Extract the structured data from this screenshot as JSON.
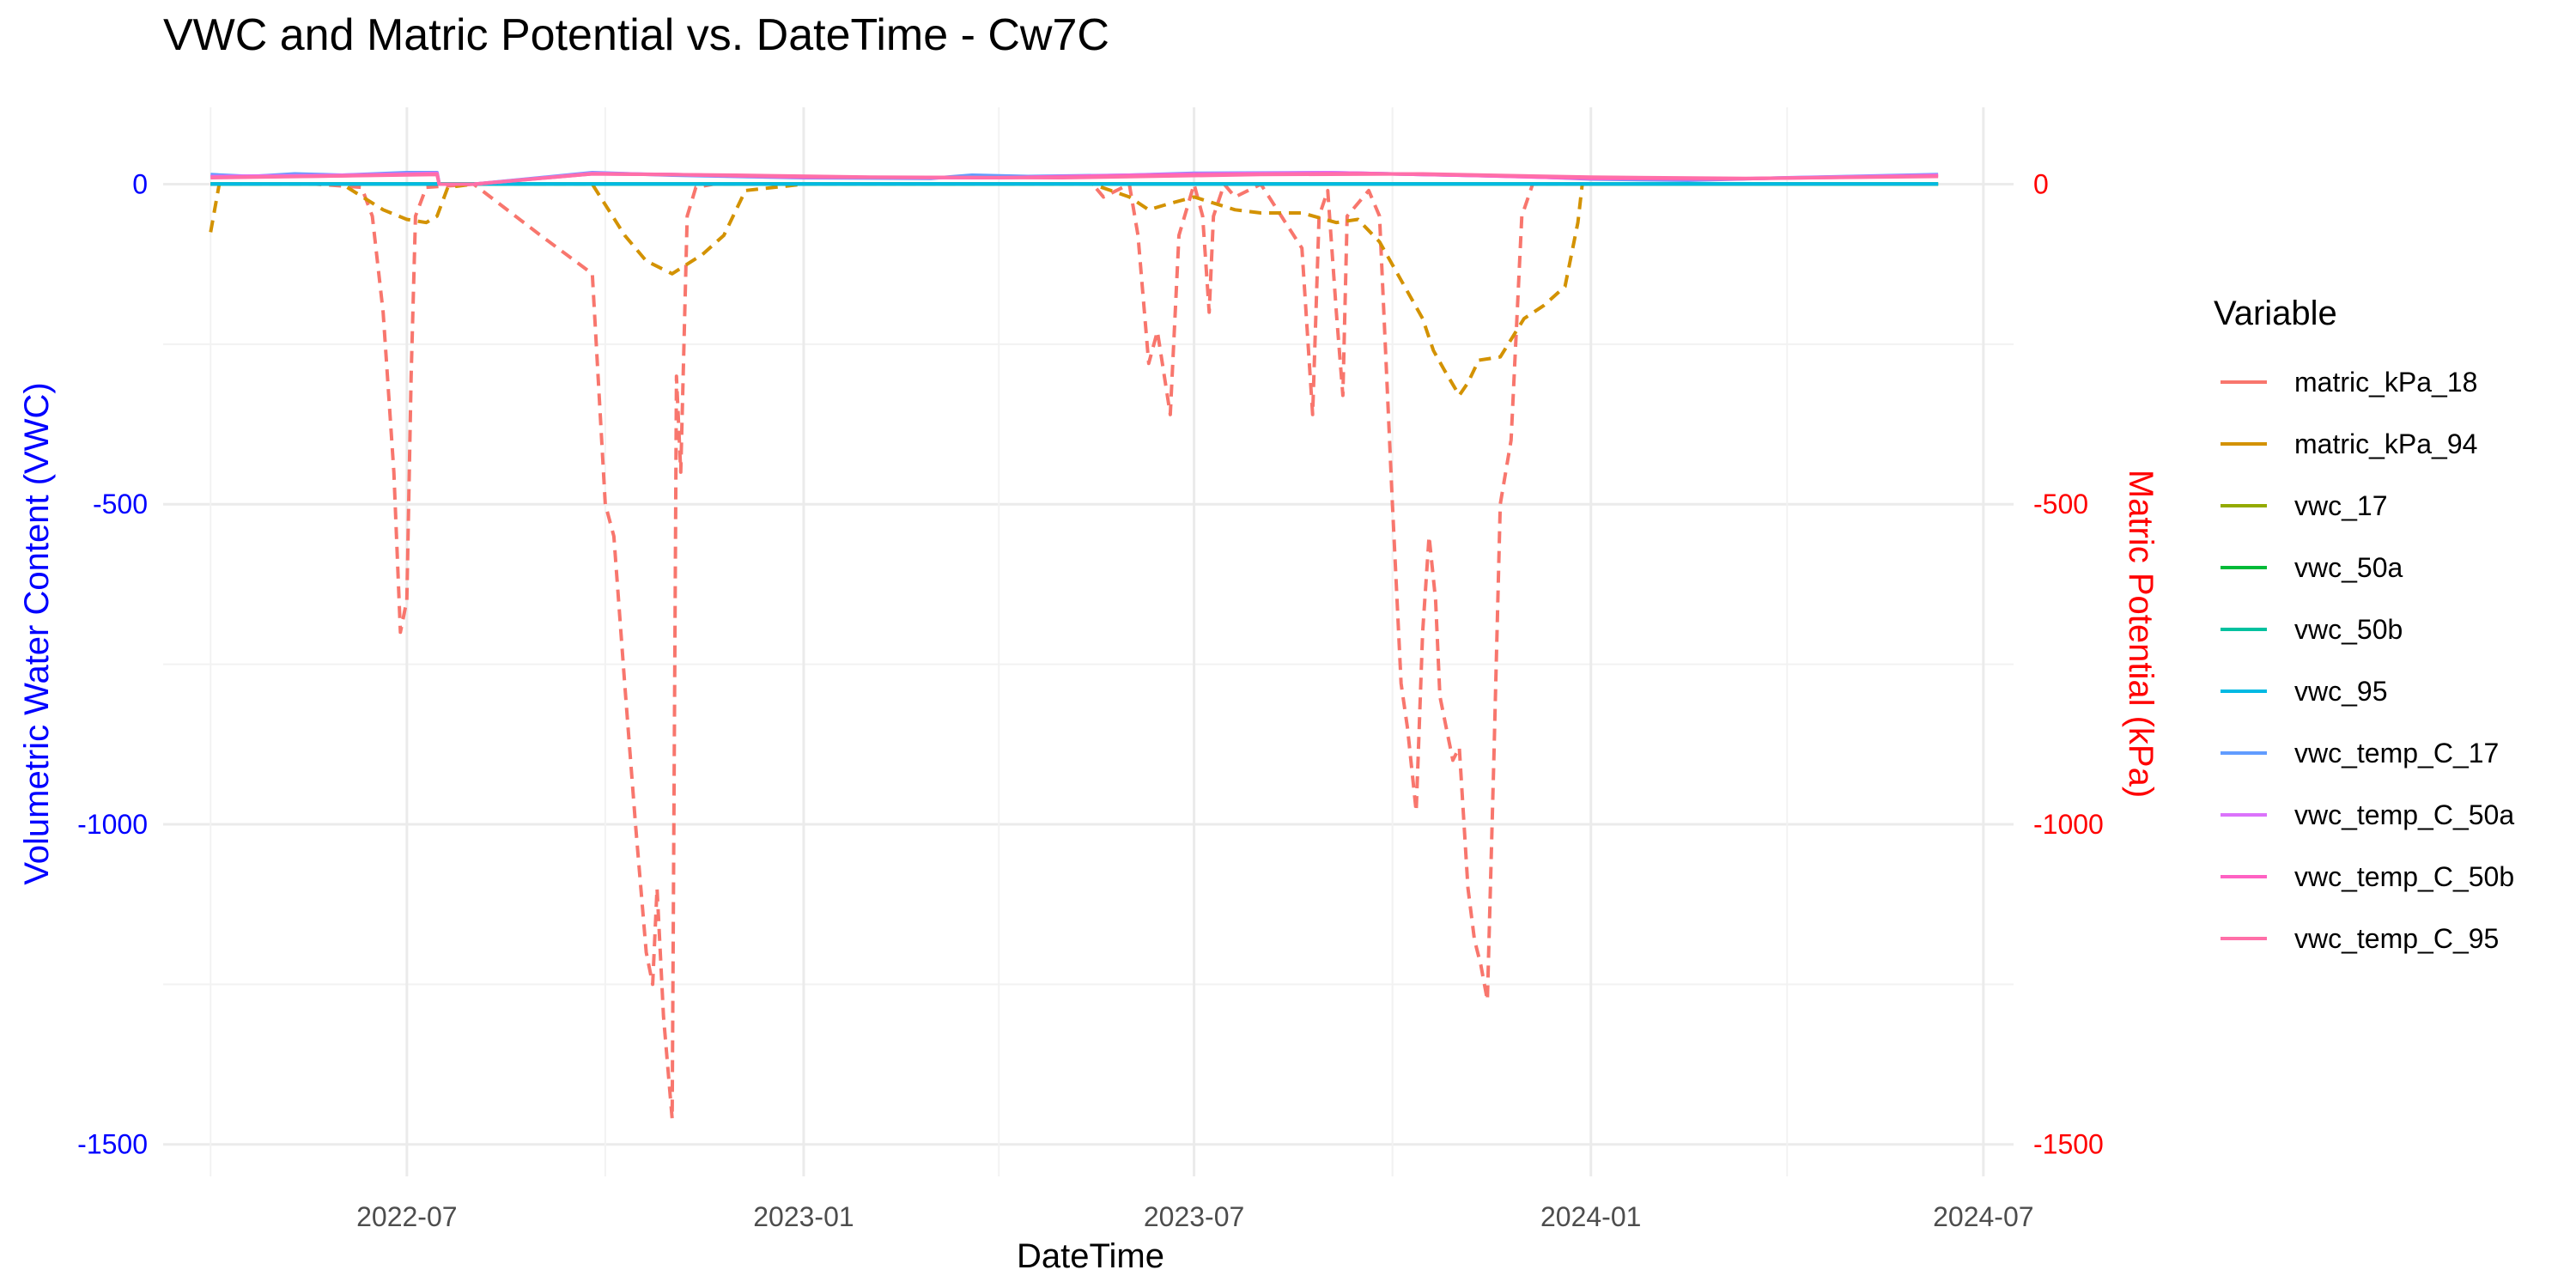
{
  "chart_data": {
    "type": "line",
    "title": "VWC and Matric Potential vs. DateTime - Cw7C",
    "xlabel": "DateTime",
    "ylabel_left": "Volumetric Water Content (VWC)",
    "ylabel_right": "Matric Potential (kPa)",
    "xlim": [
      "2022-03-10",
      "2024-07-15"
    ],
    "ylim": [
      -1550,
      120
    ],
    "x_ticks": [
      "2022-07-01",
      "2023-01-01",
      "2023-07-01",
      "2024-01-01",
      "2024-07-01"
    ],
    "x_tick_labels": [
      "2022-07",
      "2023-01",
      "2023-07",
      "2024-01",
      "2024-07"
    ],
    "y_ticks": [
      0,
      -500,
      -1000,
      -1500
    ],
    "y_tick_labels": [
      "0",
      "-500",
      "-1000",
      "-1500"
    ],
    "y_right_ticks": [
      0,
      -500,
      -1000,
      -1500
    ],
    "y_right_tick_labels": [
      "0",
      "-500",
      "-1000",
      "-1500"
    ],
    "grid": true,
    "legend_title": "Variable",
    "legend_position": "right",
    "colors": {
      "left_axis": "#0000ff",
      "right_axis": "#ff0000",
      "grid": "#ebebeb"
    },
    "series": [
      {
        "name": "matric_kPa_18",
        "color": "#F8766D",
        "dashed": true,
        "points": [
          [
            "2022-04-01",
            0
          ],
          [
            "2022-05-20",
            0
          ],
          [
            "2022-06-10",
            -5
          ],
          [
            "2022-06-15",
            -50
          ],
          [
            "2022-06-20",
            -200
          ],
          [
            "2022-06-25",
            -450
          ],
          [
            "2022-06-28",
            -700
          ],
          [
            "2022-07-01",
            -650
          ],
          [
            "2022-07-03",
            -300
          ],
          [
            "2022-07-05",
            -50
          ],
          [
            "2022-07-10",
            -5
          ],
          [
            "2022-08-01",
            0
          ],
          [
            "2022-09-01",
            -80
          ],
          [
            "2022-09-25",
            -140
          ],
          [
            "2022-10-01",
            -500
          ],
          [
            "2022-10-05",
            -550
          ],
          [
            "2022-10-10",
            -780
          ],
          [
            "2022-10-15",
            -1000
          ],
          [
            "2022-10-20",
            -1200
          ],
          [
            "2022-10-23",
            -1250
          ],
          [
            "2022-10-25",
            -1100
          ],
          [
            "2022-10-28",
            -1300
          ],
          [
            "2022-11-01",
            -1460
          ],
          [
            "2022-11-03",
            -300
          ],
          [
            "2022-11-05",
            -450
          ],
          [
            "2022-11-08",
            -50
          ],
          [
            "2022-11-12",
            -5
          ],
          [
            "2022-11-20",
            0
          ],
          [
            "2023-01-01",
            0
          ],
          [
            "2023-05-15",
            0
          ],
          [
            "2023-05-20",
            -20
          ],
          [
            "2023-06-01",
            0
          ],
          [
            "2023-06-05",
            -80
          ],
          [
            "2023-06-10",
            -280
          ],
          [
            "2023-06-14",
            -230
          ],
          [
            "2023-06-20",
            -360
          ],
          [
            "2023-06-24",
            -80
          ],
          [
            "2023-07-01",
            0
          ],
          [
            "2023-07-05",
            -50
          ],
          [
            "2023-07-08",
            -200
          ],
          [
            "2023-07-10",
            -50
          ],
          [
            "2023-07-15",
            0
          ],
          [
            "2023-07-20",
            -20
          ],
          [
            "2023-08-01",
            0
          ],
          [
            "2023-08-20",
            -100
          ],
          [
            "2023-08-25",
            -360
          ],
          [
            "2023-08-28",
            -50
          ],
          [
            "2023-09-01",
            -10
          ],
          [
            "2023-09-05",
            -200
          ],
          [
            "2023-09-08",
            -330
          ],
          [
            "2023-09-10",
            -50
          ],
          [
            "2023-09-20",
            -10
          ],
          [
            "2023-09-25",
            -50
          ],
          [
            "2023-10-01",
            -500
          ],
          [
            "2023-10-05",
            -780
          ],
          [
            "2023-10-08",
            -850
          ],
          [
            "2023-10-12",
            -980
          ],
          [
            "2023-10-15",
            -700
          ],
          [
            "2023-10-18",
            -550
          ],
          [
            "2023-10-21",
            -650
          ],
          [
            "2023-10-23",
            -800
          ],
          [
            "2023-10-26",
            -850
          ],
          [
            "2023-10-29",
            -900
          ],
          [
            "2023-11-01",
            -880
          ],
          [
            "2023-11-05",
            -1100
          ],
          [
            "2023-11-08",
            -1180
          ],
          [
            "2023-11-11",
            -1220
          ],
          [
            "2023-11-14",
            -1275
          ],
          [
            "2023-11-17",
            -900
          ],
          [
            "2023-11-20",
            -500
          ],
          [
            "2023-11-25",
            -400
          ],
          [
            "2023-11-30",
            -50
          ],
          [
            "2023-12-05",
            0
          ],
          [
            "2024-06-10",
            0
          ]
        ]
      },
      {
        "name": "matric_kPa_94",
        "color": "#D39200",
        "dashed": true,
        "points": [
          [
            "2022-04-01",
            -75
          ],
          [
            "2022-04-05",
            0
          ],
          [
            "2022-06-01",
            0
          ],
          [
            "2022-06-20",
            -40
          ],
          [
            "2022-07-01",
            -55
          ],
          [
            "2022-07-10",
            -60
          ],
          [
            "2022-07-15",
            -50
          ],
          [
            "2022-07-20",
            -5
          ],
          [
            "2022-08-01",
            0
          ],
          [
            "2022-09-25",
            0
          ],
          [
            "2022-10-10",
            -80
          ],
          [
            "2022-10-20",
            -120
          ],
          [
            "2022-11-01",
            -140
          ],
          [
            "2022-11-15",
            -110
          ],
          [
            "2022-11-25",
            -80
          ],
          [
            "2022-12-05",
            -10
          ],
          [
            "2023-01-01",
            0
          ],
          [
            "2023-05-15",
            0
          ],
          [
            "2023-06-01",
            -20
          ],
          [
            "2023-06-10",
            -40
          ],
          [
            "2023-06-20",
            -30
          ],
          [
            "2023-07-01",
            -20
          ],
          [
            "2023-07-20",
            -40
          ],
          [
            "2023-08-01",
            -45
          ],
          [
            "2023-08-20",
            -45
          ],
          [
            "2023-09-05",
            -60
          ],
          [
            "2023-09-15",
            -55
          ],
          [
            "2023-09-25",
            -90
          ],
          [
            "2023-10-05",
            -150
          ],
          [
            "2023-10-15",
            -210
          ],
          [
            "2023-10-20",
            -260
          ],
          [
            "2023-10-25",
            -290
          ],
          [
            "2023-11-01",
            -330
          ],
          [
            "2023-11-05",
            -310
          ],
          [
            "2023-11-10",
            -275
          ],
          [
            "2023-11-20",
            -270
          ],
          [
            "2023-12-01",
            -210
          ],
          [
            "2023-12-10",
            -190
          ],
          [
            "2023-12-20",
            -160
          ],
          [
            "2023-12-26",
            -60
          ],
          [
            "2023-12-28",
            0
          ],
          [
            "2024-06-10",
            0
          ]
        ]
      },
      {
        "name": "vwc_17",
        "color": "#93AA00",
        "dashed": false,
        "points": [
          [
            "2022-04-01",
            0.3
          ],
          [
            "2024-06-10",
            0.3
          ]
        ]
      },
      {
        "name": "vwc_50a",
        "color": "#00BA38",
        "dashed": false,
        "points": [
          [
            "2022-04-01",
            0.3
          ],
          [
            "2024-06-10",
            0.3
          ]
        ]
      },
      {
        "name": "vwc_50b",
        "color": "#00C19F",
        "dashed": false,
        "points": [
          [
            "2022-04-01",
            0.3
          ],
          [
            "2024-06-10",
            0.3
          ]
        ]
      },
      {
        "name": "vwc_95",
        "color": "#00B9E3",
        "dashed": false,
        "points": [
          [
            "2022-04-01",
            0.3
          ],
          [
            "2024-06-10",
            0.3
          ]
        ]
      },
      {
        "name": "vwc_temp_C_17",
        "color": "#619CFF",
        "dashed": false,
        "points": [
          [
            "2022-04-01",
            15
          ],
          [
            "2022-04-20",
            12
          ],
          [
            "2022-05-10",
            16
          ],
          [
            "2022-06-01",
            14
          ],
          [
            "2022-07-01",
            18
          ],
          [
            "2022-07-15",
            18
          ],
          [
            "2022-07-16",
            0
          ],
          [
            "2022-08-01",
            0
          ],
          [
            "2022-09-25",
            18
          ],
          [
            "2022-11-01",
            14
          ],
          [
            "2023-01-01",
            10
          ],
          [
            "2023-03-01",
            9
          ],
          [
            "2023-03-20",
            14
          ],
          [
            "2023-04-15",
            12
          ],
          [
            "2023-06-01",
            14
          ],
          [
            "2023-07-01",
            17
          ],
          [
            "2023-09-01",
            18
          ],
          [
            "2023-10-01",
            16
          ],
          [
            "2023-12-01",
            12
          ],
          [
            "2024-01-01",
            8
          ],
          [
            "2024-02-15",
            6
          ],
          [
            "2024-04-01",
            10
          ],
          [
            "2024-06-10",
            15
          ]
        ]
      },
      {
        "name": "vwc_temp_C_50a",
        "color": "#DB72FB",
        "dashed": false,
        "points": [
          [
            "2022-04-01",
            12
          ],
          [
            "2022-06-01",
            14
          ],
          [
            "2022-07-15",
            17
          ],
          [
            "2022-07-16",
            0
          ],
          [
            "2022-08-01",
            0
          ],
          [
            "2022-09-25",
            17
          ],
          [
            "2022-11-01",
            15
          ],
          [
            "2023-01-01",
            11
          ],
          [
            "2023-04-01",
            10
          ],
          [
            "2023-07-01",
            16
          ],
          [
            "2023-09-01",
            18
          ],
          [
            "2023-11-01",
            14
          ],
          [
            "2024-01-01",
            9
          ],
          [
            "2024-03-01",
            8
          ],
          [
            "2024-06-10",
            14
          ]
        ]
      },
      {
        "name": "vwc_temp_C_50b",
        "color": "#FF61C3",
        "dashed": false,
        "points": [
          [
            "2022-04-01",
            11
          ],
          [
            "2022-06-01",
            13
          ],
          [
            "2022-07-15",
            16
          ],
          [
            "2022-07-16",
            0
          ],
          [
            "2022-08-01",
            0
          ],
          [
            "2022-09-25",
            16
          ],
          [
            "2022-11-01",
            15
          ],
          [
            "2023-01-01",
            11
          ],
          [
            "2023-04-01",
            10
          ],
          [
            "2023-07-01",
            15
          ],
          [
            "2023-09-15",
            17
          ],
          [
            "2023-11-15",
            13
          ],
          [
            "2024-01-01",
            9
          ],
          [
            "2024-03-01",
            8
          ],
          [
            "2024-06-10",
            13
          ]
        ]
      },
      {
        "name": "vwc_temp_C_95",
        "color": "#FF6FA8",
        "dashed": false,
        "points": [
          [
            "2022-04-01",
            10
          ],
          [
            "2022-07-15",
            15
          ],
          [
            "2022-07-16",
            0
          ],
          [
            "2022-08-01",
            0
          ],
          [
            "2022-09-25",
            16
          ],
          [
            "2022-12-01",
            14
          ],
          [
            "2023-02-01",
            11
          ],
          [
            "2023-05-01",
            10
          ],
          [
            "2023-08-01",
            15
          ],
          [
            "2023-10-15",
            16
          ],
          [
            "2024-01-01",
            11
          ],
          [
            "2024-03-15",
            9
          ],
          [
            "2024-06-10",
            12
          ]
        ]
      }
    ]
  }
}
